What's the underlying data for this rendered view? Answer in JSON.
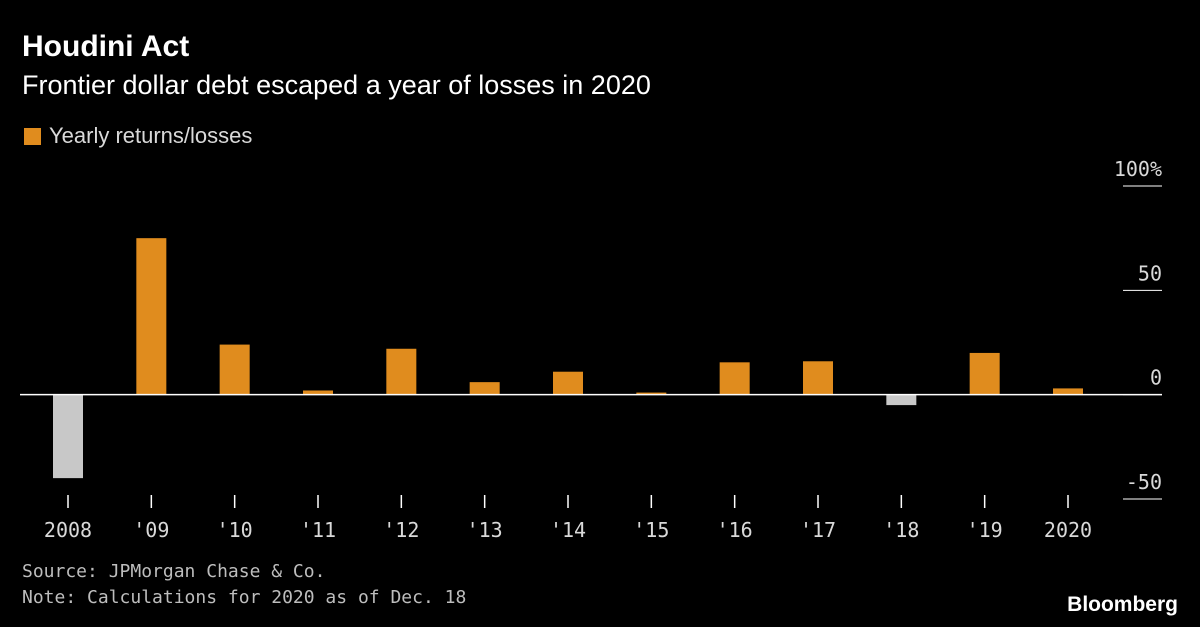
{
  "title": "Houdini Act",
  "subtitle": "Frontier dollar debt escaped a year of losses in 2020",
  "legend": {
    "label": "Yearly returns/losses"
  },
  "colors": {
    "positive": "#e08c1e",
    "negative": "#c8c8c8",
    "axis": "#ffffff",
    "background": "#000000"
  },
  "footer": {
    "source": "Source: JPMorgan Chase & Co.",
    "note": "Note: Calculations for 2020 as of Dec. 18",
    "brand": "Bloomberg"
  },
  "chart_data": {
    "type": "bar",
    "categories": [
      "2008",
      "'09",
      "'10",
      "'11",
      "'12",
      "'13",
      "'14",
      "'15",
      "'16",
      "'17",
      "'18",
      "'19",
      "2020"
    ],
    "series": [
      {
        "name": "Yearly returns/losses",
        "values": [
          -40,
          75,
          24,
          2,
          22,
          6,
          11,
          1,
          15.5,
          16,
          -5,
          20,
          3
        ]
      }
    ],
    "y_ticks": [
      {
        "value": 100,
        "label": "100%"
      },
      {
        "value": 50,
        "label": "50"
      },
      {
        "value": 0,
        "label": "0"
      },
      {
        "value": -50,
        "label": "-50"
      }
    ],
    "ylim": [
      -50,
      100
    ],
    "y_axis_side": "right",
    "legend_position": "top-left",
    "grid": false
  }
}
